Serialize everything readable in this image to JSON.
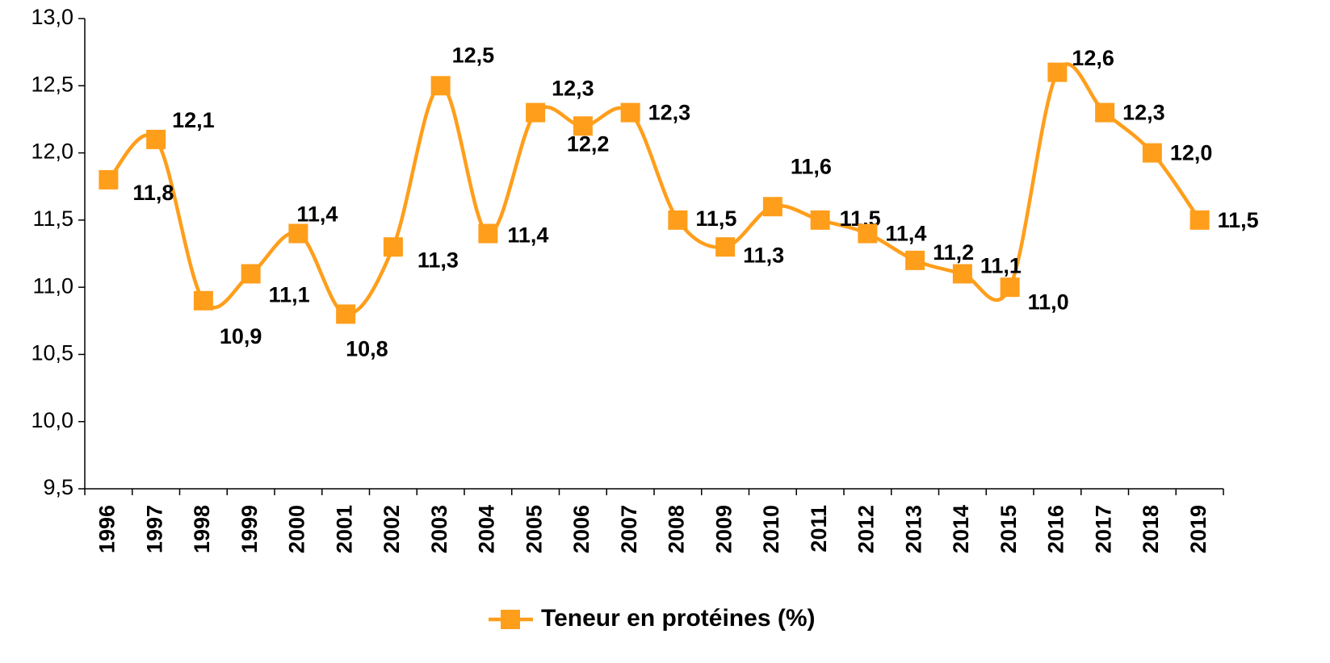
{
  "chart_data": {
    "type": "line",
    "categories": [
      "1996",
      "1997",
      "1998",
      "1999",
      "2000",
      "2001",
      "2002",
      "2003",
      "2004",
      "2005",
      "2006",
      "2007",
      "2008",
      "2009",
      "2010",
      "2011",
      "2012",
      "2013",
      "2014",
      "2015",
      "2016",
      "2017",
      "2018",
      "2019"
    ],
    "series": [
      {
        "name": "Teneur en protéines (%)",
        "color": "#ff9e1b",
        "values": [
          11.8,
          12.1,
          10.9,
          11.1,
          11.4,
          10.8,
          11.3,
          12.5,
          11.4,
          12.3,
          12.2,
          12.3,
          11.5,
          11.3,
          11.6,
          11.5,
          11.4,
          11.2,
          11.1,
          11.0,
          12.6,
          12.3,
          12.0,
          11.5
        ],
        "value_labels": [
          "11,8",
          "12,1",
          "10,9",
          "11,1",
          "11,4",
          "10,8",
          "11,3",
          "12,5",
          "11,4",
          "12,3",
          "12,2",
          "12,3",
          "11,5",
          "11,3",
          "11,6",
          "11,5",
          "11,4",
          "11,2",
          "11,1",
          "11,0",
          "12,6",
          "12,3",
          "12,0",
          "11,5"
        ]
      }
    ],
    "ylim": [
      9.5,
      13.0
    ],
    "yticks": [
      {
        "value": 9.5,
        "label": "9,5"
      },
      {
        "value": 10.0,
        "label": "10,0"
      },
      {
        "value": 10.5,
        "label": "10,5"
      },
      {
        "value": 11.0,
        "label": "11,0"
      },
      {
        "value": 11.5,
        "label": "11,5"
      },
      {
        "value": 12.0,
        "label": "12,0"
      },
      {
        "value": 12.5,
        "label": "12,5"
      },
      {
        "value": 13.0,
        "label": "13,0"
      }
    ],
    "grid": false,
    "legend": "bottom"
  }
}
